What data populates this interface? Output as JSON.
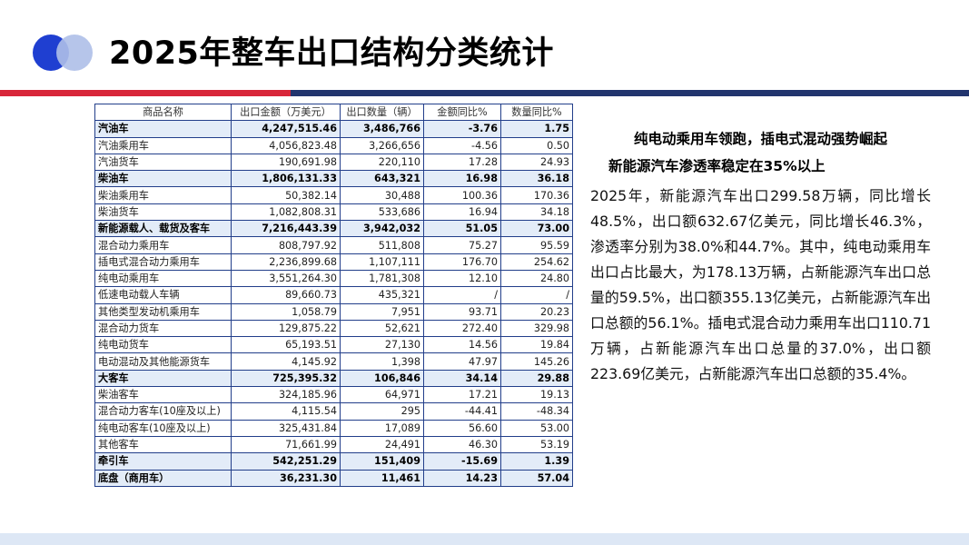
{
  "page": {
    "title": "2025年整车出口结构分类统计",
    "colors": {
      "accent_blue": "#1f3fd1",
      "accent_light": "#aebfe8",
      "band_red": "#d8263a",
      "band_navy": "#22356e",
      "table_border": "#223e8a",
      "bold_row_bg": "#e3ecf8"
    }
  },
  "table": {
    "headers": [
      "商品名称",
      "出口金额（万美元）",
      "出口数量（辆）",
      "金额同比%",
      "数量同比%"
    ],
    "rows": [
      {
        "name": "汽油车",
        "amount": "4,247,515.46",
        "qty": "3,486,766",
        "amt_yoy": "-3.76",
        "qty_yoy": "1.75",
        "bold": true
      },
      {
        "name": "汽油乘用车",
        "amount": "4,056,823.48",
        "qty": "3,266,656",
        "amt_yoy": "-4.56",
        "qty_yoy": "0.50",
        "bold": false
      },
      {
        "name": "汽油货车",
        "amount": "190,691.98",
        "qty": "220,110",
        "amt_yoy": "17.28",
        "qty_yoy": "24.93",
        "bold": false
      },
      {
        "name": "柴油车",
        "amount": "1,806,131.33",
        "qty": "643,321",
        "amt_yoy": "16.98",
        "qty_yoy": "36.18",
        "bold": true
      },
      {
        "name": "柴油乘用车",
        "amount": "50,382.14",
        "qty": "30,488",
        "amt_yoy": "100.36",
        "qty_yoy": "170.36",
        "bold": false
      },
      {
        "name": "柴油货车",
        "amount": "1,082,808.31",
        "qty": "533,686",
        "amt_yoy": "16.94",
        "qty_yoy": "34.18",
        "bold": false
      },
      {
        "name": "新能源载人、载货及客车",
        "amount": "7,216,443.39",
        "qty": "3,942,032",
        "amt_yoy": "51.05",
        "qty_yoy": "73.00",
        "bold": true
      },
      {
        "name": "混合动力乘用车",
        "amount": "808,797.92",
        "qty": "511,808",
        "amt_yoy": "75.27",
        "qty_yoy": "95.59",
        "bold": false
      },
      {
        "name": "插电式混合动力乘用车",
        "amount": "2,236,899.68",
        "qty": "1,107,111",
        "amt_yoy": "176.70",
        "qty_yoy": "254.62",
        "bold": false
      },
      {
        "name": "纯电动乘用车",
        "amount": "3,551,264.30",
        "qty": "1,781,308",
        "amt_yoy": "12.10",
        "qty_yoy": "24.80",
        "bold": false
      },
      {
        "name": "低速电动载人车辆",
        "amount": "89,660.73",
        "qty": "435,321",
        "amt_yoy": "/",
        "qty_yoy": "/",
        "bold": false
      },
      {
        "name": "其他类型发动机乘用车",
        "amount": "1,058.79",
        "qty": "7,951",
        "amt_yoy": "93.71",
        "qty_yoy": "20.23",
        "bold": false
      },
      {
        "name": "混合动力货车",
        "amount": "129,875.22",
        "qty": "52,621",
        "amt_yoy": "272.40",
        "qty_yoy": "329.98",
        "bold": false
      },
      {
        "name": "纯电动货车",
        "amount": "65,193.51",
        "qty": "27,130",
        "amt_yoy": "14.56",
        "qty_yoy": "19.84",
        "bold": false
      },
      {
        "name": "电动混动及其他能源货车",
        "amount": "4,145.92",
        "qty": "1,398",
        "amt_yoy": "47.97",
        "qty_yoy": "145.26",
        "bold": false
      },
      {
        "name": "大客车",
        "amount": "725,395.32",
        "qty": "106,846",
        "amt_yoy": "34.14",
        "qty_yoy": "29.88",
        "bold": true
      },
      {
        "name": "柴油客车",
        "amount": "324,185.96",
        "qty": "64,971",
        "amt_yoy": "17.21",
        "qty_yoy": "19.13",
        "bold": false
      },
      {
        "name": "混合动力客车(10座及以上)",
        "amount": "4,115.54",
        "qty": "295",
        "amt_yoy": "-44.41",
        "qty_yoy": "-48.34",
        "bold": false
      },
      {
        "name": "纯电动客车(10座及以上)",
        "amount": "325,431.84",
        "qty": "17,089",
        "amt_yoy": "56.60",
        "qty_yoy": "53.00",
        "bold": false
      },
      {
        "name": "其他客车",
        "amount": "71,661.99",
        "qty": "24,491",
        "amt_yoy": "46.30",
        "qty_yoy": "53.19",
        "bold": false
      },
      {
        "name": "牵引车",
        "amount": "542,251.29",
        "qty": "151,409",
        "amt_yoy": "-15.69",
        "qty_yoy": "1.39",
        "bold": true
      },
      {
        "name": "底盘（商用车）",
        "amount": "36,231.30",
        "qty": "11,461",
        "amt_yoy": "14.23",
        "qty_yoy": "57.04",
        "bold": true
      }
    ]
  },
  "sidebar": {
    "headline1": "纯电动乘用车领跑，插电式混动强势崛起",
    "headline2": "新能源汽车渗透率稳定在35%以上",
    "paragraph": "2025年，新能源汽车出口299.58万辆，同比增长48.5%，出口额632.67亿美元，同比增长46.3%，渗透率分别为38.0%和44.7%。其中，纯电动乘用车出口占比最大，为178.13万辆，占新能源汽车出口总量的59.5%，出口额355.13亿美元，占新能源汽车出口总额的56.1%。插电式混合动力乘用车出口110.71万辆，占新能源汽车出口总量的37.0%，出口额223.69亿美元，占新能源汽车出口总额的35.4%。"
  }
}
